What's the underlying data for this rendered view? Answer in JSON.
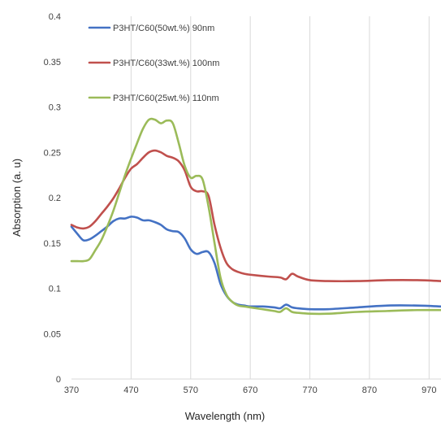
{
  "chart_data": {
    "type": "line",
    "title": "",
    "xlabel": "Wavelength (nm)",
    "ylabel": "Absorption (a. u)",
    "xlim": [
      370,
      990
    ],
    "ylim": [
      0,
      0.4
    ],
    "x_ticks": [
      370,
      470,
      570,
      670,
      770,
      870,
      970
    ],
    "x_tick_labels": [
      "370",
      "470",
      "570",
      "670",
      "770",
      "870",
      "970"
    ],
    "y_ticks": [
      0,
      0.05,
      0.1,
      0.15,
      0.2,
      0.25,
      0.3,
      0.35,
      0.4
    ],
    "y_tick_labels": [
      "0",
      "0.05",
      "0.1",
      "0.15",
      "0.2",
      "0.25",
      "0.3",
      "0.35",
      "0.4"
    ],
    "grid": "vertical",
    "legend_position": "top-left",
    "series": [
      {
        "name": "P3HT/C60(50wt.%)  90nm",
        "color": "#4472C4",
        "x": [
          370,
          380,
          390,
          400,
          410,
          420,
          430,
          440,
          450,
          460,
          470,
          480,
          490,
          500,
          510,
          520,
          530,
          540,
          550,
          560,
          570,
          580,
          590,
          600,
          610,
          620,
          630,
          640,
          650,
          660,
          670,
          690,
          710,
          720,
          730,
          740,
          750,
          770,
          800,
          850,
          900,
          950,
          990
        ],
        "y": [
          0.168,
          0.16,
          0.153,
          0.154,
          0.158,
          0.163,
          0.168,
          0.174,
          0.177,
          0.177,
          0.179,
          0.178,
          0.175,
          0.175,
          0.173,
          0.17,
          0.165,
          0.163,
          0.162,
          0.155,
          0.143,
          0.138,
          0.14,
          0.14,
          0.128,
          0.105,
          0.092,
          0.085,
          0.082,
          0.081,
          0.08,
          0.08,
          0.079,
          0.078,
          0.082,
          0.079,
          0.078,
          0.077,
          0.077,
          0.079,
          0.081,
          0.081,
          0.08
        ]
      },
      {
        "name": "P3HT/C60(33wt.%) 100nm",
        "color": "#C0504D",
        "x": [
          370,
          380,
          390,
          400,
          410,
          420,
          430,
          440,
          450,
          460,
          470,
          480,
          490,
          500,
          510,
          520,
          530,
          540,
          550,
          560,
          570,
          580,
          590,
          600,
          610,
          620,
          630,
          640,
          650,
          660,
          670,
          700,
          720,
          730,
          740,
          750,
          770,
          800,
          850,
          900,
          950,
          990
        ],
        "y": [
          0.17,
          0.167,
          0.166,
          0.168,
          0.174,
          0.182,
          0.19,
          0.199,
          0.21,
          0.222,
          0.232,
          0.237,
          0.244,
          0.25,
          0.252,
          0.25,
          0.246,
          0.244,
          0.24,
          0.23,
          0.212,
          0.207,
          0.207,
          0.202,
          0.17,
          0.145,
          0.128,
          0.121,
          0.118,
          0.116,
          0.115,
          0.113,
          0.112,
          0.11,
          0.116,
          0.113,
          0.109,
          0.108,
          0.108,
          0.109,
          0.109,
          0.108
        ]
      },
      {
        "name": "P3HT/C60(25wt.%) 110nm",
        "color": "#9BBB59",
        "x": [
          370,
          380,
          390,
          400,
          410,
          420,
          430,
          440,
          450,
          460,
          470,
          480,
          490,
          500,
          510,
          520,
          530,
          540,
          550,
          560,
          570,
          580,
          590,
          600,
          610,
          620,
          630,
          640,
          650,
          660,
          670,
          690,
          710,
          720,
          730,
          740,
          750,
          770,
          800,
          850,
          900,
          950,
          990
        ],
        "y": [
          0.13,
          0.13,
          0.13,
          0.132,
          0.142,
          0.153,
          0.168,
          0.185,
          0.205,
          0.225,
          0.243,
          0.26,
          0.276,
          0.286,
          0.286,
          0.282,
          0.285,
          0.282,
          0.26,
          0.235,
          0.222,
          0.224,
          0.22,
          0.19,
          0.15,
          0.112,
          0.093,
          0.085,
          0.081,
          0.08,
          0.079,
          0.077,
          0.075,
          0.074,
          0.078,
          0.074,
          0.073,
          0.072,
          0.072,
          0.074,
          0.075,
          0.076,
          0.076
        ]
      }
    ]
  }
}
